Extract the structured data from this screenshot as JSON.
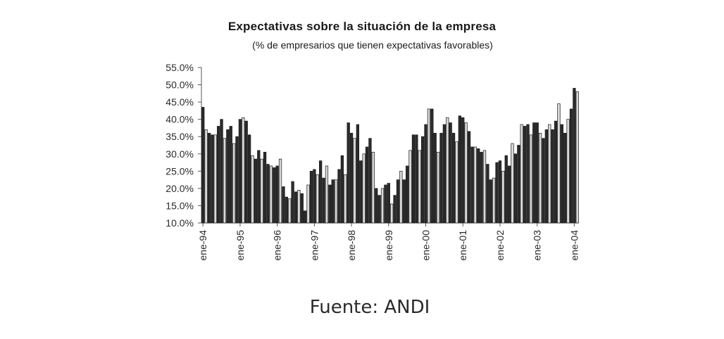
{
  "chart_data": {
    "type": "bar",
    "title": "Expectativas sobre la situación de la empresa",
    "subtitle": "(% de empresarios que tienen expectativas favorables)",
    "xlabel": "",
    "ylabel": "",
    "ylim": [
      10,
      55
    ],
    "yticks": [
      "10.0%",
      "15.0%",
      "20.0%",
      "25.0%",
      "30.0%",
      "35.0%",
      "40.0%",
      "45.0%",
      "50.0%",
      "55.0%"
    ],
    "x_tick_labels": [
      "ene-94",
      "ene-95",
      "ene-96",
      "ene-97",
      "ene-98",
      "ene-99",
      "ene-00",
      "ene-01",
      "ene-02",
      "ene-03",
      "ene-04"
    ],
    "grid": false,
    "legend": "none",
    "x_start": "ene-94",
    "x_step": "month",
    "values": [
      43.5,
      37.0,
      36.0,
      35.5,
      35.5,
      38.0,
      40.0,
      34.5,
      37.0,
      38.0,
      33.0,
      35.0,
      40.0,
      40.5,
      39.5,
      35.5,
      29.5,
      28.5,
      31.0,
      28.5,
      30.5,
      27.0,
      26.5,
      26.0,
      26.5,
      28.5,
      20.5,
      17.5,
      17.0,
      22.0,
      19.0,
      19.5,
      18.5,
      13.5,
      21.0,
      25.0,
      25.5,
      24.0,
      28.0,
      23.0,
      26.5,
      21.0,
      22.5,
      22.5,
      25.5,
      29.5,
      24.0,
      39.0,
      36.0,
      34.5,
      38.5,
      28.0,
      30.0,
      32.0,
      34.5,
      30.5,
      20.0,
      18.0,
      20.0,
      21.0,
      21.5,
      15.5,
      18.0,
      22.5,
      25.0,
      22.5,
      26.5,
      31.0,
      35.5,
      35.5,
      31.0,
      35.0,
      38.5,
      43.0,
      43.0,
      36.0,
      30.5,
      36.0,
      38.5,
      40.5,
      39.0,
      36.0,
      33.5,
      41.0,
      40.5,
      39.0,
      36.5,
      32.0,
      32.0,
      31.5,
      30.5,
      31.0,
      27.0,
      22.5,
      23.0,
      27.5,
      28.0,
      25.0,
      29.5,
      26.5,
      33.0,
      30.0,
      32.5,
      38.5,
      38.0,
      38.5,
      35.5,
      39.0,
      39.0,
      36.0,
      34.5,
      37.0,
      38.5,
      37.0,
      39.5,
      44.5,
      38.5,
      36.0,
      40.0,
      43.0,
      49.0,
      48.0
    ]
  },
  "source": "Fuente: ANDI"
}
